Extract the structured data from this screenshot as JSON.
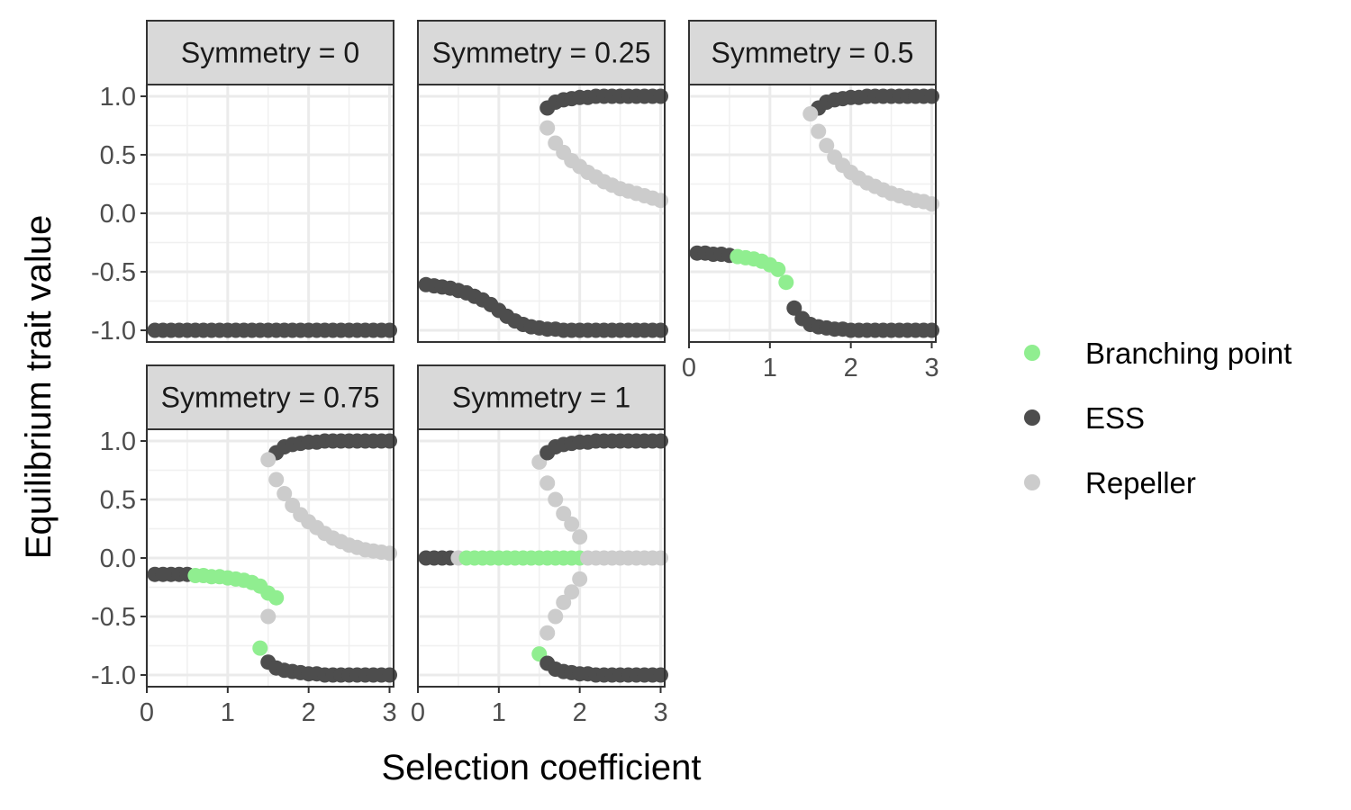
{
  "chart_data": {
    "type": "scatter",
    "facet_by": "Symmetry",
    "xlabel": "Selection coefficient",
    "ylabel": "Equilibrium trait value",
    "xlim": [
      0,
      3.05
    ],
    "ylim": [
      -1.1,
      1.1
    ],
    "x_ticks": [
      0,
      1,
      2,
      3
    ],
    "y_ticks": [
      -1.0,
      -0.5,
      0.0,
      0.5,
      1.0
    ],
    "y_tick_labels": [
      "-1.0",
      "-0.5",
      "0.0",
      "0.5",
      "1.0"
    ],
    "grid": true,
    "legend": {
      "position": "right",
      "entries": [
        {
          "name": "Branching point",
          "color": "#90EE90"
        },
        {
          "name": "ESS",
          "color": "#4D4D4D"
        },
        {
          "name": "Repeller",
          "color": "#CCCCCC"
        }
      ]
    },
    "panels": [
      {
        "label": "Symmetry = 0",
        "series": [
          {
            "name": "ESS",
            "x": [
              0.1,
              0.2,
              0.3,
              0.4,
              0.5,
              0.6,
              0.7,
              0.8,
              0.9,
              1.0,
              1.1,
              1.2,
              1.3,
              1.4,
              1.5,
              1.6,
              1.7,
              1.8,
              1.9,
              2.0,
              2.1,
              2.2,
              2.3,
              2.4,
              2.5,
              2.6,
              2.7,
              2.8,
              2.9,
              3.0
            ],
            "y": [
              -1,
              -1,
              -1,
              -1,
              -1,
              -1,
              -1,
              -1,
              -1,
              -1,
              -1,
              -1,
              -1,
              -1,
              -1,
              -1,
              -1,
              -1,
              -1,
              -1,
              -1,
              -1,
              -1,
              -1,
              -1,
              -1,
              -1,
              -1,
              -1,
              -1
            ]
          }
        ]
      },
      {
        "label": "Symmetry = 0.25",
        "series": [
          {
            "name": "ESS",
            "x": [
              0.1,
              0.2,
              0.3,
              0.4,
              0.5,
              0.6,
              0.7,
              0.8,
              0.9,
              1.0,
              1.1,
              1.2,
              1.3,
              1.4,
              1.5,
              1.6,
              1.7,
              1.8,
              1.9,
              2.0,
              2.1,
              2.2,
              2.3,
              2.4,
              2.5,
              2.6,
              2.7,
              2.8,
              2.9,
              3.0
            ],
            "y": [
              -0.61,
              -0.62,
              -0.63,
              -0.64,
              -0.66,
              -0.68,
              -0.71,
              -0.74,
              -0.78,
              -0.83,
              -0.88,
              -0.92,
              -0.95,
              -0.97,
              -0.98,
              -0.99,
              -0.99,
              -1,
              -1,
              -1,
              -1,
              -1,
              -1,
              -1,
              -1,
              -1,
              -1,
              -1,
              -1,
              -1
            ]
          },
          {
            "name": "ESS",
            "x": [
              1.6,
              1.7,
              1.8,
              1.9,
              2.0,
              2.1,
              2.2,
              2.3,
              2.4,
              2.5,
              2.6,
              2.7,
              2.8,
              2.9,
              3.0
            ],
            "y": [
              0.9,
              0.95,
              0.97,
              0.98,
              0.99,
              0.99,
              1,
              1,
              1,
              1,
              1,
              1,
              1,
              1,
              1
            ]
          },
          {
            "name": "Repeller",
            "x": [
              1.6,
              1.7,
              1.8,
              1.9,
              2.0,
              2.1,
              2.2,
              2.3,
              2.4,
              2.5,
              2.6,
              2.7,
              2.8,
              2.9,
              3.0
            ],
            "y": [
              0.73,
              0.6,
              0.52,
              0.45,
              0.4,
              0.35,
              0.31,
              0.27,
              0.24,
              0.21,
              0.19,
              0.17,
              0.15,
              0.13,
              0.11
            ]
          }
        ]
      },
      {
        "label": "Symmetry = 0.5",
        "series": [
          {
            "name": "ESS",
            "x": [
              0.1,
              0.2,
              0.3,
              0.4,
              0.5
            ],
            "y": [
              -0.34,
              -0.34,
              -0.35,
              -0.35,
              -0.36
            ]
          },
          {
            "name": "Branching point",
            "x": [
              0.6,
              0.7,
              0.8,
              0.9,
              1.0,
              1.1,
              1.2
            ],
            "y": [
              -0.37,
              -0.38,
              -0.39,
              -0.41,
              -0.44,
              -0.48,
              -0.59
            ]
          },
          {
            "name": "ESS",
            "x": [
              1.3,
              1.4,
              1.5,
              1.6,
              1.7,
              1.8,
              1.9,
              2.0,
              2.1,
              2.2,
              2.3,
              2.4,
              2.5,
              2.6,
              2.7,
              2.8,
              2.9,
              3.0
            ],
            "y": [
              -0.81,
              -0.9,
              -0.95,
              -0.97,
              -0.98,
              -0.99,
              -0.99,
              -1,
              -1,
              -1,
              -1,
              -1,
              -1,
              -1,
              -1,
              -1,
              -1,
              -1
            ]
          },
          {
            "name": "ESS",
            "x": [
              1.6,
              1.7,
              1.8,
              1.9,
              2.0,
              2.1,
              2.2,
              2.3,
              2.4,
              2.5,
              2.6,
              2.7,
              2.8,
              2.9,
              3.0
            ],
            "y": [
              0.9,
              0.95,
              0.97,
              0.98,
              0.99,
              0.99,
              1,
              1,
              1,
              1,
              1,
              1,
              1,
              1,
              1
            ]
          },
          {
            "name": "Repeller",
            "x": [
              1.5,
              1.6,
              1.7,
              1.8,
              1.9,
              2.0,
              2.1,
              2.2,
              2.3,
              2.4,
              2.5,
              2.6,
              2.7,
              2.8,
              2.9,
              3.0
            ],
            "y": [
              0.85,
              0.7,
              0.58,
              0.48,
              0.41,
              0.35,
              0.3,
              0.26,
              0.23,
              0.2,
              0.17,
              0.15,
              0.13,
              0.11,
              0.1,
              0.08
            ]
          }
        ]
      },
      {
        "label": "Symmetry = 0.75",
        "series": [
          {
            "name": "ESS",
            "x": [
              0.1,
              0.2,
              0.3,
              0.4,
              0.5
            ],
            "y": [
              -0.14,
              -0.14,
              -0.14,
              -0.14,
              -0.14
            ]
          },
          {
            "name": "Branching point",
            "x": [
              0.6,
              0.7,
              0.8,
              0.9,
              1.0,
              1.1,
              1.2,
              1.3,
              1.4,
              1.5,
              1.6
            ],
            "y": [
              -0.15,
              -0.15,
              -0.16,
              -0.16,
              -0.17,
              -0.18,
              -0.19,
              -0.21,
              -0.24,
              -0.3,
              -0.34
            ]
          },
          {
            "name": "Branching point",
            "x": [
              1.4
            ],
            "y": [
              -0.77
            ]
          },
          {
            "name": "Repeller",
            "x": [
              1.5
            ],
            "y": [
              -0.5
            ]
          },
          {
            "name": "ESS",
            "x": [
              1.5,
              1.6,
              1.7,
              1.8,
              1.9,
              2.0,
              2.1,
              2.2,
              2.3,
              2.4,
              2.5,
              2.6,
              2.7,
              2.8,
              2.9,
              3.0
            ],
            "y": [
              -0.89,
              -0.94,
              -0.96,
              -0.97,
              -0.98,
              -0.99,
              -0.99,
              -1,
              -1,
              -1,
              -1,
              -1,
              -1,
              -1,
              -1,
              -1
            ]
          },
          {
            "name": "ESS",
            "x": [
              1.6,
              1.7,
              1.8,
              1.9,
              2.0,
              2.1,
              2.2,
              2.3,
              2.4,
              2.5,
              2.6,
              2.7,
              2.8,
              2.9,
              3.0
            ],
            "y": [
              0.9,
              0.95,
              0.97,
              0.98,
              0.99,
              0.99,
              1,
              1,
              1,
              1,
              1,
              1,
              1,
              1,
              1
            ]
          },
          {
            "name": "Repeller",
            "x": [
              1.5,
              1.6,
              1.7,
              1.8,
              1.9,
              2.0,
              2.1,
              2.2,
              2.3,
              2.4,
              2.5,
              2.6,
              2.7,
              2.8,
              2.9,
              3.0
            ],
            "y": [
              0.84,
              0.67,
              0.55,
              0.45,
              0.37,
              0.31,
              0.26,
              0.21,
              0.17,
              0.14,
              0.11,
              0.09,
              0.07,
              0.06,
              0.05,
              0.04
            ]
          }
        ]
      },
      {
        "label": "Symmetry = 1",
        "series": [
          {
            "name": "ESS",
            "x": [
              0.1,
              0.2,
              0.3,
              0.4
            ],
            "y": [
              0,
              0,
              0,
              0
            ]
          },
          {
            "name": "Repeller",
            "x": [
              0.5
            ],
            "y": [
              0
            ]
          },
          {
            "name": "Branching point",
            "x": [
              0.6,
              0.7,
              0.8,
              0.9,
              1.0,
              1.1,
              1.2,
              1.3,
              1.4,
              1.5,
              1.6,
              1.7,
              1.8,
              1.9,
              2.0
            ],
            "y": [
              0,
              0,
              0,
              0,
              0,
              0,
              0,
              0,
              0,
              0,
              0,
              0,
              0,
              0,
              0
            ]
          },
          {
            "name": "Repeller",
            "x": [
              2.1,
              2.2,
              2.3,
              2.4,
              2.5,
              2.6,
              2.7,
              2.8,
              2.9,
              3.0
            ],
            "y": [
              0,
              0,
              0,
              0,
              0,
              0,
              0,
              0,
              0,
              0
            ]
          },
          {
            "name": "Repeller",
            "x": [
              1.5,
              1.6,
              1.7,
              1.8,
              1.9,
              2.0
            ],
            "y": [
              0.82,
              0.64,
              0.5,
              0.38,
              0.29,
              0.18
            ]
          },
          {
            "name": "Repeller",
            "x": [
              1.6,
              1.7,
              1.8,
              1.9,
              2.0
            ],
            "y": [
              -0.64,
              -0.5,
              -0.38,
              -0.29,
              -0.18
            ]
          },
          {
            "name": "Branching point",
            "x": [
              1.5
            ],
            "y": [
              -0.82
            ]
          },
          {
            "name": "ESS",
            "x": [
              1.6,
              1.7,
              1.8,
              1.9,
              2.0,
              2.1,
              2.2,
              2.3,
              2.4,
              2.5,
              2.6,
              2.7,
              2.8,
              2.9,
              3.0
            ],
            "y": [
              -0.9,
              -0.95,
              -0.97,
              -0.98,
              -0.99,
              -0.99,
              -1,
              -1,
              -1,
              -1,
              -1,
              -1,
              -1,
              -1,
              -1
            ]
          },
          {
            "name": "ESS",
            "x": [
              1.6,
              1.7,
              1.8,
              1.9,
              2.0,
              2.1,
              2.2,
              2.3,
              2.4,
              2.5,
              2.6,
              2.7,
              2.8,
              2.9,
              3.0
            ],
            "y": [
              0.9,
              0.95,
              0.97,
              0.98,
              0.99,
              0.99,
              1,
              1,
              1,
              1,
              1,
              1,
              1,
              1,
              1
            ]
          }
        ]
      }
    ]
  }
}
